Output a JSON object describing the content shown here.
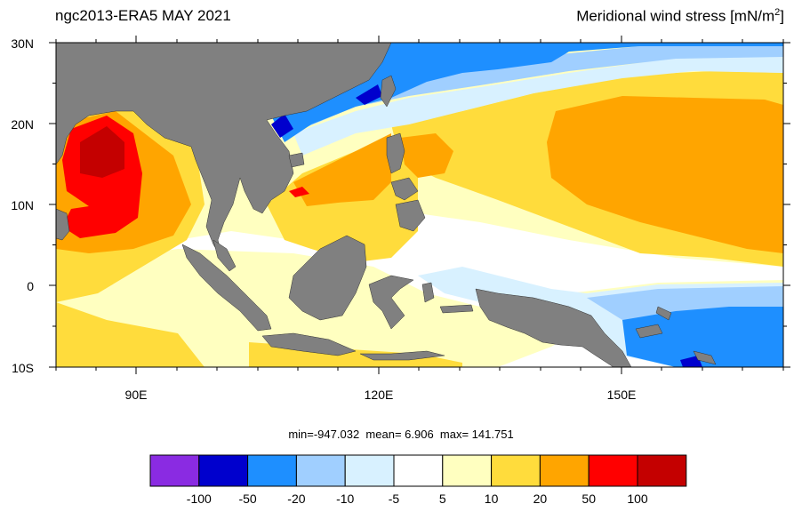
{
  "title": {
    "left": "ngc2013-ERA5  MAY 2021",
    "right_main": "Meridional wind stress [mN/m",
    "right_sup": "2",
    "right_end": "]"
  },
  "axes": {
    "lat_labels": [
      "30N",
      "20N",
      "10N",
      "0",
      "10S"
    ],
    "lon_labels": [
      "90E",
      "120E",
      "150E"
    ]
  },
  "stats": {
    "min_label": "min=-947.032",
    "mean_label": "mean=   6.906",
    "max_label": "max= 141.751"
  },
  "colorbar": {
    "tick_labels": [
      "-100",
      "-50",
      "-20",
      "-10",
      "-5",
      "5",
      "10",
      "20",
      "50",
      "100"
    ],
    "colors": [
      "#8a2be2",
      "#0000cd",
      "#1e8fff",
      "#a0cfff",
      "#d8f1ff",
      "#ffffff",
      "#ffffc0",
      "#ffdc3c",
      "#ffa500",
      "#ff0000",
      "#c40000"
    ]
  },
  "colors": {
    "land": "#808080",
    "ocean_default": "#ffffff"
  }
}
